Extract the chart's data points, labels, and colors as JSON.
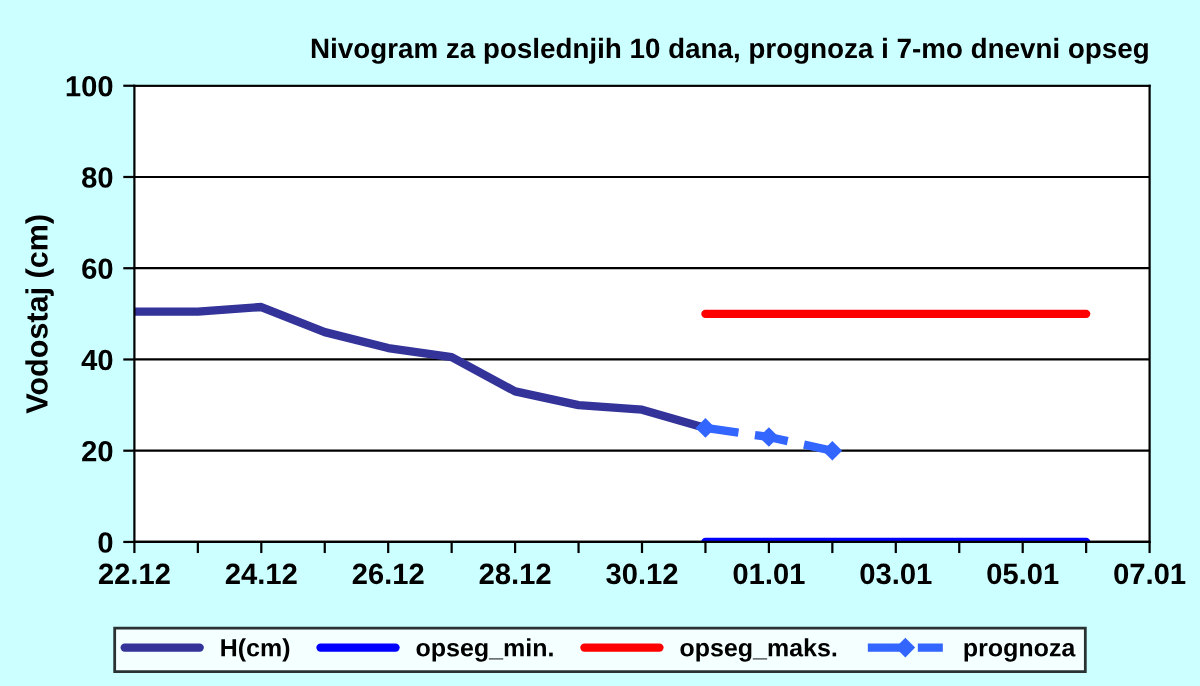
{
  "chart_data": {
    "type": "line",
    "title": "Nivogram za poslednjih 10 dana, prognoza i 7-mo dnevni opseg",
    "ylabel": "Vodostaj (cm)",
    "categories": [
      "22.12",
      null,
      "24.12",
      null,
      "26.12",
      null,
      "28.12",
      null,
      "30.12",
      null,
      "01.01",
      null,
      "03.01",
      null,
      "05.01",
      null,
      "07.01"
    ],
    "series": [
      {
        "name": "H(cm)",
        "color": "#333399",
        "values": [
          50.5,
          50.5,
          51.5,
          46,
          42.5,
          40.5,
          33,
          30,
          29,
          25,
          null,
          null,
          null,
          null,
          null,
          null,
          null
        ]
      },
      {
        "name": "opseg_min.",
        "color": "#0000ff",
        "values": [
          null,
          null,
          null,
          null,
          null,
          null,
          null,
          null,
          null,
          0,
          0,
          0,
          0,
          0,
          0,
          0,
          null
        ]
      },
      {
        "name": "opseg_maks.",
        "color": "#ff0000",
        "values": [
          null,
          null,
          null,
          null,
          null,
          null,
          null,
          null,
          null,
          50,
          50,
          50,
          50,
          50,
          50,
          50,
          null
        ]
      },
      {
        "name": "prognoza",
        "color": "#3366ff",
        "values": [
          null,
          null,
          null,
          null,
          null,
          null,
          null,
          null,
          null,
          25,
          23,
          20,
          null,
          null,
          null,
          null,
          null
        ],
        "marker": "diamond",
        "line_style": "dashed"
      }
    ],
    "ylim": [
      0,
      100
    ],
    "yticks": [
      0,
      20,
      40,
      60,
      80,
      100
    ],
    "grid": "y",
    "legend": "bottom"
  }
}
